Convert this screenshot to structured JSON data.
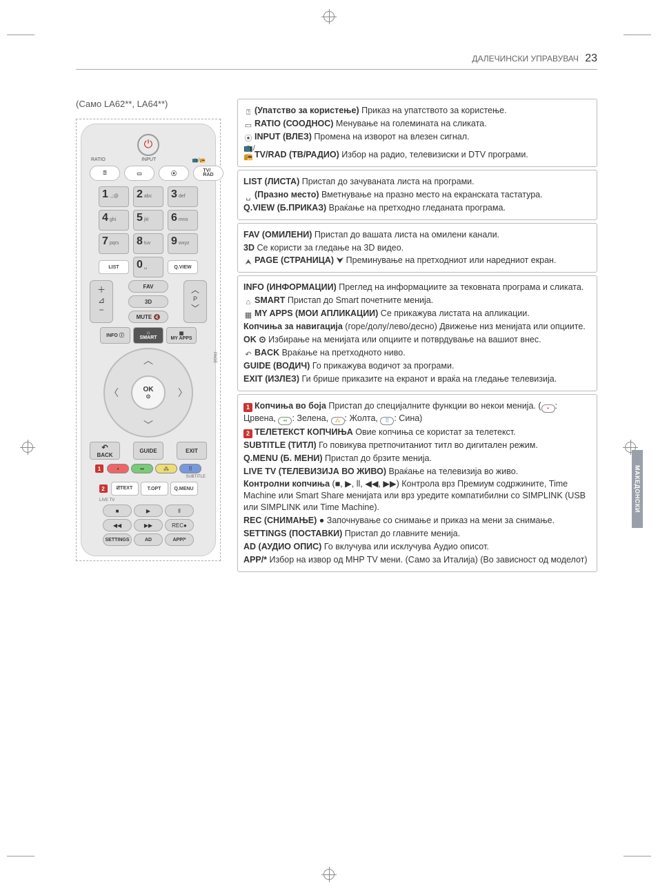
{
  "header_title": "ДАЛЕЧИНСКИ УПРАВУВАЧ",
  "page_number": "23",
  "side_tab": "МАКЕДОНСКИ",
  "left_note": "(Само LA62**, LA64**)",
  "remote": {
    "labels": {
      "ratio": "RATIO",
      "input": "INPUT",
      "tvrad_icon": "📺/📻",
      "tvrad": "TV/\nRAD",
      "page": "PAGE"
    },
    "numpad": [
      {
        "n": "1",
        "s": ".,;@"
      },
      {
        "n": "2",
        "s": "abc"
      },
      {
        "n": "3",
        "s": "def"
      },
      {
        "n": "4",
        "s": "ghi"
      },
      {
        "n": "5",
        "s": "jkl"
      },
      {
        "n": "6",
        "s": "mno"
      },
      {
        "n": "7",
        "s": "pqrs"
      },
      {
        "n": "8",
        "s": "tuv"
      },
      {
        "n": "9",
        "s": "wxyz"
      }
    ],
    "list": "LIST",
    "zero": "0",
    "zero_sub": "␣",
    "qview": "Q.VIEW",
    "fav": "FAV",
    "threeD": "3D",
    "p": "P",
    "mute": "MUTE 🔇",
    "info": "INFO ⓘ",
    "smart": "SMART",
    "myapps": "MY APPS",
    "ok": "OK",
    "ok_sub": "⊙",
    "back": "BACK",
    "guide": "GUIDE",
    "exit": "EXIT",
    "text": "⎚TEXT",
    "topt": "T.OPT",
    "qmenu": "Q.MENU",
    "subtitle_label": "SUBTITLE",
    "livetv_label": "LIVE TV",
    "rec": "REC●",
    "settings": "SETTINGS",
    "ad": "AD",
    "app": "APP/*"
  },
  "groups": [
    {
      "items": [
        {
          "icon": "⍰",
          "bold": "(Упатство за користење)",
          "text": " Приказ на упатството за користење."
        },
        {
          "icon": "▭",
          "bold": "RATIO (СООДНОС)",
          "text": " Менување на големината на сликата."
        },
        {
          "icon": "⦿",
          "bold": "INPUT (ВЛЕЗ)",
          "text": " Промена на изворот на влезен сигнал."
        },
        {
          "icon": "📺/📻",
          "bold": "TV/RAD (ТВ/РАДИО)",
          "text": " Избор на радио, телевизиски и DTV програми."
        }
      ]
    },
    {
      "items": [
        {
          "bold": "LIST (ЛИСТА)",
          "text": " Пристап до зачуваната листа на програми."
        },
        {
          "icon": "␣",
          "bold": "(Празно место)",
          "text": " Вметнување на празно место на екранската тастатура."
        },
        {
          "bold": "Q.VIEW (Б.ПРИКАЗ)",
          "text": " Враќање на претходно гледаната програма."
        }
      ]
    },
    {
      "items": [
        {
          "bold": "FAV (ОМИЛЕНИ)",
          "text": " Пристап до вашата листа на омилени канали."
        },
        {
          "bold": "3D",
          "text": " Се користи за гледање на 3D видео."
        },
        {
          "icon": "⮝",
          "bold": "PAGE (СТРАНИЦА)",
          "text": " ⮟ Преминување на претходниот или наредниот екран."
        }
      ]
    },
    {
      "items": [
        {
          "bold": "INFO (ИНФОРМАЦИИ)",
          "text": " Преглед на информациите за тековната програма и сликата."
        },
        {
          "icon": "⌂",
          "bold": "SMART",
          "text": " Пристап до Smart почетните менија."
        },
        {
          "icon": "▦",
          "bold": "MY APPS (МОИ АПЛИКАЦИИ)",
          "text": " Се прикажува листата на апликации."
        },
        {
          "bold": "Копчиња за навигација",
          "text": " (горе/долу/лево/десно) Движење низ менијата или опциите."
        },
        {
          "bold": "OK ⊙",
          "text": " Избирање на менијата или опциите и потврдување на вашиот внес."
        },
        {
          "icon": "↶",
          "bold": "BACK",
          "text": " Враќање на претходното ниво."
        },
        {
          "bold": "GUIDE (ВОДИЧ)",
          "text": " Го прикажува водичот за програми."
        },
        {
          "bold": "EXIT (ИЗЛЕЗ)",
          "text": "  Ги брише приказите на екранот и враќа на гледање телевизија."
        }
      ]
    },
    {
      "items": [
        {
          "ref": "1",
          "bold": "Копчиња во боја",
          "text": " Пристап до специјалните функции во некои менија. (",
          "colors": true,
          "text2": ")"
        },
        {
          "ref": "2",
          "bold": "ТЕЛЕТЕКСТ КОПЧИЊА",
          "text": " Овие копчиња се користат за телетекст."
        },
        {
          "bold": "SUBTITLE (ТИТЛ)",
          "text": " Го повикува претпочитаниот титл во дигитален режим."
        },
        {
          "bold": "Q.MENU (Б. МЕНИ)",
          "text": " Пристап до брзите менија."
        },
        {
          "bold": "LIVE TV (ТЕЛЕВИЗИЈА ВО ЖИВО)",
          "text": " Враќање на телевизија во живо."
        },
        {
          "bold": "Контролни копчиња",
          "text": " (■, ▶, ll, ◀◀, ▶▶) Контрола врз Премиум содржините, Time Machine или Smart Share менијата или врз уредите компатибилни со SIMPLINK (USB или SIMPLINK или Time Machine)."
        },
        {
          "bold": "REC (СНИМАЊЕ) ●",
          "text": " Започнување со снимање и приказ на мени за снимање."
        },
        {
          "bold": "SETTINGS (ПОСТАВКИ)",
          "text": " Пристап до главните менија."
        },
        {
          "bold": "AD (АУДИО ОПИС)",
          "text": " Го вклучува или исклучува Аудио описот."
        },
        {
          "bold": "APP/*",
          "text": " Избор на извор од MHP TV мени. (Само за Италија) (Во зависност од моделот)"
        }
      ]
    }
  ],
  "color_legend": {
    "red": "Црвена",
    "green": "Зелена",
    "yellow": "Жолта",
    "blue": "Сина"
  }
}
